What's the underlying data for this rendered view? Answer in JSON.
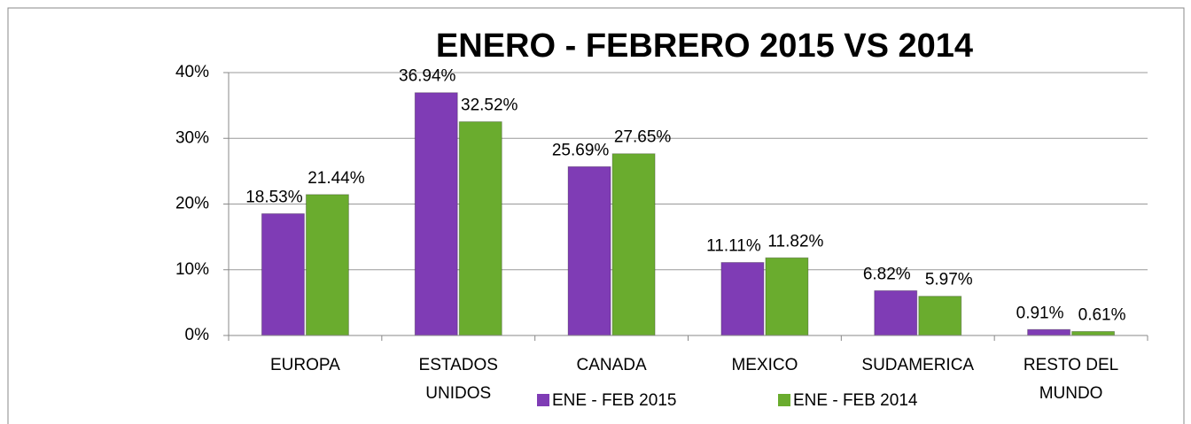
{
  "chart_data": {
    "type": "bar",
    "title": "ENERO - FEBRERO  2015 VS 2014",
    "categories": [
      "EUROPA",
      "ESTADOS UNIDOS",
      "CANADA",
      "MEXICO",
      "SUDAMERICA",
      "RESTO DEL MUNDO"
    ],
    "series": [
      {
        "name": "ENE - FEB 2015",
        "color": "#7f3cb5",
        "values": [
          18.53,
          36.94,
          25.69,
          11.11,
          6.82,
          0.91
        ],
        "value_labels": [
          "18.53%",
          "36.94%",
          "25.69%",
          "11.11%",
          "6.82%",
          "0.91%"
        ]
      },
      {
        "name": "ENE - FEB 2014",
        "color": "#6aac2e",
        "values": [
          21.44,
          32.52,
          27.65,
          11.82,
          5.97,
          0.61
        ],
        "value_labels": [
          "21.44%",
          "32.52%",
          "27.65%",
          "11.82%",
          "5.97%",
          "0.61%"
        ]
      }
    ],
    "ylim": [
      0,
      40
    ],
    "yticks": [
      {
        "value": 0,
        "label": "0%"
      },
      {
        "value": 10,
        "label": "10%"
      },
      {
        "value": 20,
        "label": "20%"
      },
      {
        "value": 30,
        "label": "30%"
      },
      {
        "value": 40,
        "label": "40%"
      }
    ],
    "grid": true,
    "legend": "bottom"
  }
}
